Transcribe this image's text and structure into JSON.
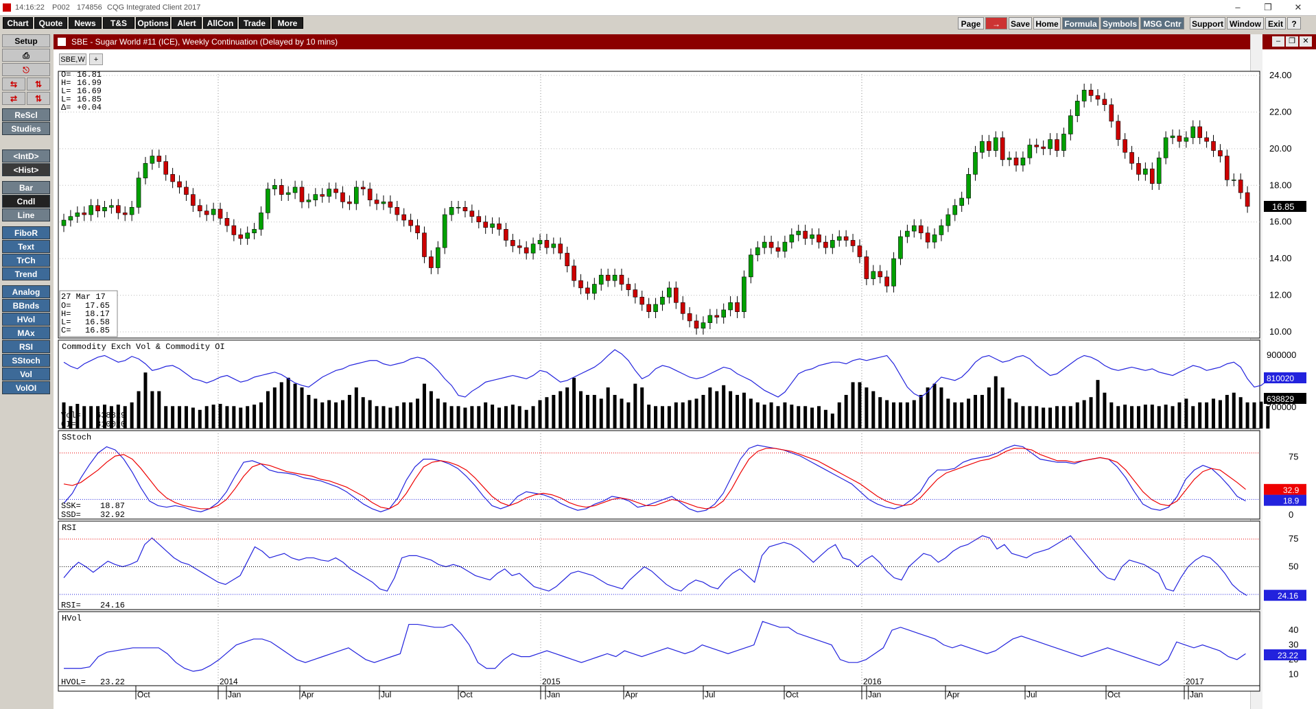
{
  "window": {
    "time": "14:16:22",
    "page": "P002",
    "id": "174856",
    "title": "CQG Integrated Client 2017"
  },
  "menu": [
    "Chart",
    "Quote",
    "News",
    "T&S",
    "Options",
    "Alert",
    "AllCon",
    "Trade",
    "More"
  ],
  "toolbar_right": [
    "Page",
    "→",
    "Save",
    "Home",
    "Formula",
    "Symbols",
    "MSG Cntr",
    "Support",
    "Window",
    "Exit",
    "?"
  ],
  "sidebar": {
    "top": [
      "Setup",
      "ReScl",
      "Studies",
      "<IntD>",
      "<Hist>",
      "Bar",
      "Cndl",
      "Line"
    ],
    "studies": [
      "FiboR",
      "Text",
      "TrCh",
      "Trend",
      "Analog",
      "BBnds",
      "HVol",
      "MAx",
      "RSI",
      "SStoch",
      "Vol",
      "VolOI"
    ]
  },
  "chart_window": {
    "title": "SBE - Sugar World #11 (ICE), Weekly Continuation (Delayed by 10 mins)",
    "tab": "SBE,W"
  },
  "ohlc_top": {
    "O": "16.81",
    "H": "16.99",
    "L": "16.69",
    "L2": "16.85",
    "delta": "+0.04"
  },
  "cursor_box": {
    "date": "27 Mar 17",
    "O": "17.65",
    "H": "18.17",
    "L": "16.58",
    "C": "16.85"
  },
  "colors": {
    "up": "#00a000",
    "down": "#cc0000",
    "blue": "#2222dd",
    "red": "#ee0000",
    "title_bar": "#8b0000"
  },
  "chart_data": [
    {
      "type": "candlestick",
      "title": "SBE - Sugar World #11 (ICE), Weekly Continuation",
      "ylim": [
        10,
        24
      ],
      "yticks": [
        "24.00",
        "22.00",
        "20.00",
        "18.00",
        "16.00",
        "14.00",
        "12.00",
        "10.00"
      ],
      "last": "16.85",
      "close": [
        16.1,
        16.3,
        16.5,
        16.4,
        16.9,
        16.6,
        16.8,
        16.9,
        16.5,
        16.4,
        16.8,
        18.4,
        19.2,
        19.6,
        19.3,
        18.6,
        18.2,
        17.9,
        17.5,
        16.9,
        16.6,
        16.4,
        16.7,
        16.2,
        15.8,
        15.3,
        15.1,
        15.4,
        15.6,
        16.5,
        17.8,
        18.0,
        17.5,
        17.6,
        17.9,
        17.1,
        17.2,
        17.5,
        17.4,
        17.8,
        17.6,
        17.1,
        17.0,
        17.9,
        17.8,
        17.2,
        17.0,
        17.1,
        16.8,
        16.4,
        16.1,
        15.8,
        15.4,
        14.1,
        13.5,
        14.6,
        16.4,
        16.8,
        16.8,
        16.6,
        16.3,
        16.0,
        15.7,
        15.9,
        15.6,
        15.0,
        14.7,
        14.6,
        14.3,
        14.8,
        15.0,
        14.6,
        14.8,
        14.3,
        13.6,
        12.8,
        12.4,
        12.1,
        12.6,
        13.1,
        12.8,
        13.1,
        12.6,
        12.3,
        11.9,
        11.5,
        11.1,
        11.5,
        11.9,
        12.4,
        11.6,
        11.0,
        10.6,
        10.2,
        10.5,
        10.9,
        10.8,
        11.2,
        11.6,
        11.1,
        13.0,
        14.2,
        14.6,
        14.9,
        14.6,
        14.4,
        14.9,
        15.3,
        15.5,
        15.1,
        15.3,
        14.9,
        14.6,
        15.0,
        15.2,
        15.0,
        14.7,
        14.1,
        12.9,
        13.3,
        13.0,
        12.5,
        14.0,
        15.2,
        15.5,
        15.8,
        15.4,
        14.9,
        15.3,
        15.8,
        16.4,
        16.9,
        17.3,
        18.6,
        19.8,
        20.4,
        19.9,
        20.6,
        19.4,
        19.5,
        19.1,
        19.5,
        20.2,
        20.1,
        20.0,
        20.5,
        19.9,
        20.8,
        21.8,
        22.6,
        23.2,
        22.9,
        22.7,
        22.4,
        21.5,
        20.5,
        19.8,
        19.2,
        18.6,
        18.9,
        18.1,
        19.5,
        20.6,
        20.7,
        20.4,
        20.6,
        21.2,
        20.6,
        20.4,
        19.9,
        19.6,
        18.3,
        18.3,
        17.6,
        16.85
      ],
      "x_labels": [
        "Oct",
        "2014",
        "Jan",
        "Apr",
        "Jul",
        "Oct",
        "2015",
        "Jan",
        "Apr",
        "Jul",
        "Oct",
        "2016",
        "Jan",
        "Apr",
        "Jul",
        "Oct",
        "2017",
        "Jan"
      ]
    },
    {
      "type": "bar",
      "title": "Commodity Exch Vol & Commodity OI",
      "series": [
        {
          "name": "Vol",
          "last": "638829"
        },
        {
          "name": "OI",
          "last": "810020"
        }
      ],
      "yticks": [
        "900000",
        "700000"
      ],
      "vol": [
        0.35,
        0.3,
        0.33,
        0.3,
        0.3,
        0.3,
        0.32,
        0.3,
        0.32,
        0.3,
        0.35,
        0.5,
        0.75,
        0.5,
        0.5,
        0.3,
        0.3,
        0.3,
        0.3,
        0.28,
        0.25,
        0.3,
        0.32,
        0.33,
        0.3,
        0.3,
        0.28,
        0.3,
        0.32,
        0.35,
        0.5,
        0.55,
        0.62,
        0.68,
        0.6,
        0.55,
        0.45,
        0.4,
        0.35,
        0.38,
        0.35,
        0.38,
        0.45,
        0.55,
        0.42,
        0.38,
        0.3,
        0.3,
        0.28,
        0.3,
        0.35,
        0.35,
        0.4,
        0.6,
        0.5,
        0.4,
        0.35,
        0.3,
        0.3,
        0.28,
        0.3,
        0.3,
        0.35,
        0.32,
        0.28,
        0.3,
        0.32,
        0.3,
        0.25,
        0.3,
        0.38,
        0.42,
        0.45,
        0.5,
        0.55,
        0.68,
        0.5,
        0.45,
        0.45,
        0.4,
        0.55,
        0.45,
        0.4,
        0.35,
        0.6,
        0.55,
        0.32,
        0.3,
        0.3,
        0.3,
        0.35,
        0.35,
        0.38,
        0.4,
        0.45,
        0.55,
        0.5,
        0.58,
        0.5,
        0.45,
        0.48,
        0.4,
        0.35,
        0.32,
        0.35,
        0.3,
        0.35,
        0.32,
        0.3,
        0.3,
        0.28,
        0.3,
        0.25,
        0.2,
        0.35,
        0.45,
        0.62,
        0.62,
        0.55,
        0.5,
        0.42,
        0.38,
        0.35,
        0.35,
        0.35,
        0.38,
        0.45,
        0.55,
        0.6,
        0.55,
        0.4,
        0.35,
        0.35,
        0.4,
        0.45,
        0.45,
        0.55,
        0.7,
        0.55,
        0.4,
        0.35,
        0.3,
        0.3,
        0.3,
        0.28,
        0.28,
        0.3,
        0.3,
        0.3,
        0.35,
        0.38,
        0.42,
        0.65,
        0.48,
        0.35,
        0.3,
        0.32,
        0.3,
        0.3,
        0.32,
        0.32,
        0.3,
        0.32,
        0.3,
        0.35,
        0.4,
        0.3,
        0.35,
        0.35,
        0.4,
        0.38,
        0.45,
        0.48,
        0.42,
        0.35,
        0.35,
        0.36,
        0.3
      ],
      "oi": [
        0.8,
        0.75,
        0.72,
        0.78,
        0.82,
        0.86,
        0.88,
        0.84,
        0.8,
        0.82,
        0.87,
        0.84,
        0.78,
        0.7,
        0.72,
        0.75,
        0.76,
        0.72,
        0.66,
        0.6,
        0.58,
        0.55,
        0.58,
        0.62,
        0.64,
        0.6,
        0.56,
        0.58,
        0.62,
        0.64,
        0.66,
        0.68,
        0.65,
        0.6,
        0.55,
        0.52,
        0.5,
        0.56,
        0.62,
        0.66,
        0.7,
        0.72,
        0.76,
        0.78,
        0.8,
        0.82,
        0.82,
        0.78,
        0.76,
        0.78,
        0.8,
        0.84,
        0.86,
        0.84,
        0.78,
        0.7,
        0.6,
        0.52,
        0.4,
        0.38,
        0.45,
        0.5,
        0.56,
        0.58,
        0.6,
        0.62,
        0.64,
        0.62,
        0.6,
        0.64,
        0.7,
        0.68,
        0.62,
        0.56,
        0.58,
        0.62,
        0.66,
        0.7,
        0.74,
        0.8,
        0.88,
        0.95,
        0.9,
        0.82,
        0.7,
        0.6,
        0.64,
        0.72,
        0.76,
        0.74,
        0.7,
        0.66,
        0.62,
        0.6,
        0.62,
        0.66,
        0.7,
        0.74,
        0.72,
        0.66,
        0.62,
        0.58,
        0.52,
        0.46,
        0.42,
        0.38,
        0.44,
        0.55,
        0.66,
        0.7,
        0.72,
        0.76,
        0.78,
        0.8,
        0.8,
        0.78,
        0.82,
        0.84,
        0.82,
        0.84,
        0.86,
        0.88,
        0.78,
        0.64,
        0.5,
        0.42,
        0.38,
        0.44,
        0.54,
        0.62,
        0.6,
        0.58,
        0.62,
        0.7,
        0.8,
        0.86,
        0.88,
        0.84,
        0.8,
        0.82,
        0.86,
        0.88,
        0.84,
        0.76,
        0.7,
        0.64,
        0.66,
        0.72,
        0.78,
        0.84,
        0.88,
        0.86,
        0.82,
        0.76,
        0.72,
        0.7,
        0.72,
        0.74,
        0.72,
        0.7,
        0.72,
        0.68,
        0.66,
        0.64,
        0.68,
        0.72,
        0.76,
        0.74,
        0.7,
        0.72,
        0.74,
        0.78,
        0.8,
        0.74,
        0.6,
        0.5,
        0.52,
        0.58,
        0.62
      ]
    },
    {
      "type": "line",
      "title": "SStoch",
      "yticks": [
        "75",
        "25",
        "0"
      ],
      "series": [
        {
          "name": "SSK",
          "last": "18.87"
        },
        {
          "name": "SSD",
          "last": "32.92"
        }
      ],
      "labels_right": [
        "32.9",
        "18.9"
      ],
      "ssk": [
        15,
        28,
        48,
        65,
        80,
        88,
        84,
        72,
        55,
        35,
        18,
        12,
        10,
        12,
        10,
        6,
        4,
        8,
        16,
        30,
        50,
        68,
        70,
        66,
        58,
        55,
        54,
        52,
        48,
        46,
        44,
        40,
        36,
        30,
        22,
        14,
        8,
        4,
        8,
        22,
        45,
        62,
        72,
        72,
        70,
        66,
        60,
        50,
        38,
        24,
        12,
        8,
        12,
        24,
        30,
        28,
        26,
        22,
        15,
        10,
        6,
        8,
        14,
        18,
        24,
        22,
        18,
        10,
        12,
        16,
        20,
        24,
        16,
        8,
        4,
        6,
        14,
        28,
        50,
        72,
        86,
        90,
        88,
        86,
        84,
        80,
        76,
        70,
        64,
        58,
        52,
        46,
        40,
        30,
        20,
        14,
        10,
        8,
        12,
        20,
        30,
        48,
        58,
        58,
        60,
        68,
        72,
        74,
        76,
        80,
        86,
        90,
        88,
        80,
        72,
        70,
        68,
        68,
        66,
        70,
        72,
        74,
        72,
        62,
        48,
        30,
        14,
        8,
        6,
        10,
        24,
        46,
        58,
        64,
        60,
        50,
        38,
        24,
        18
      ],
      "ssd": [
        40,
        38,
        42,
        50,
        58,
        68,
        76,
        78,
        72,
        60,
        46,
        32,
        22,
        16,
        12,
        10,
        8,
        8,
        12,
        20,
        34,
        50,
        62,
        66,
        64,
        60,
        56,
        54,
        52,
        50,
        46,
        44,
        40,
        36,
        30,
        24,
        16,
        10,
        8,
        14,
        28,
        46,
        62,
        68,
        70,
        68,
        64,
        58,
        48,
        36,
        24,
        16,
        12,
        16,
        22,
        26,
        28,
        26,
        22,
        16,
        12,
        10,
        12,
        16,
        20,
        22,
        20,
        16,
        12,
        12,
        16,
        20,
        18,
        14,
        10,
        8,
        10,
        18,
        34,
        54,
        72,
        82,
        86,
        86,
        84,
        82,
        78,
        74,
        70,
        64,
        58,
        52,
        46,
        40,
        32,
        24,
        18,
        14,
        12,
        14,
        22,
        34,
        46,
        54,
        58,
        62,
        66,
        70,
        72,
        76,
        82,
        86,
        86,
        84,
        78,
        74,
        70,
        70,
        68,
        70,
        72,
        74,
        72,
        68,
        58,
        44,
        30,
        20,
        14,
        12,
        18,
        32,
        46,
        56,
        60,
        58,
        50,
        42,
        33
      ]
    },
    {
      "type": "line",
      "title": "RSI",
      "yticks": [
        "75",
        "50",
        "25"
      ],
      "series": [
        {
          "name": "RSI",
          "last": "24.16"
        }
      ],
      "values": [
        40,
        48,
        54,
        50,
        45,
        50,
        55,
        52,
        50,
        52,
        55,
        70,
        76,
        70,
        64,
        58,
        54,
        52,
        48,
        44,
        40,
        36,
        34,
        38,
        42,
        55,
        68,
        64,
        58,
        60,
        62,
        58,
        56,
        58,
        58,
        56,
        55,
        58,
        54,
        48,
        44,
        40,
        36,
        30,
        28,
        40,
        58,
        60,
        60,
        58,
        56,
        52,
        50,
        52,
        50,
        46,
        42,
        40,
        38,
        44,
        48,
        42,
        44,
        38,
        32,
        30,
        28,
        32,
        38,
        44,
        46,
        44,
        42,
        38,
        34,
        32,
        30,
        38,
        44,
        50,
        46,
        40,
        34,
        30,
        28,
        34,
        38,
        36,
        32,
        30,
        38,
        44,
        48,
        42,
        36,
        60,
        68,
        70,
        72,
        70,
        66,
        60,
        54,
        60,
        66,
        70,
        58,
        56,
        50,
        56,
        60,
        54,
        46,
        40,
        38,
        50,
        56,
        62,
        60,
        54,
        58,
        64,
        68,
        70,
        74,
        78,
        76,
        66,
        70,
        62,
        60,
        58,
        62,
        64,
        66,
        70,
        74,
        78,
        70,
        62,
        54,
        46,
        40,
        38,
        50,
        56,
        54,
        52,
        48,
        44,
        30,
        28,
        40,
        50,
        56,
        60,
        58,
        52,
        44,
        34,
        28,
        24
      ],
      "ylim": [
        0,
        100
      ]
    },
    {
      "type": "line",
      "title": "HVol",
      "yticks": [
        "40",
        "30",
        "20",
        "10"
      ],
      "series": [
        {
          "name": "HVOL",
          "last": "23.22"
        }
      ],
      "values": [
        14,
        14,
        14,
        15,
        22,
        25,
        26,
        27,
        28,
        28,
        28,
        28,
        24,
        18,
        14,
        12,
        13,
        16,
        20,
        25,
        30,
        32,
        34,
        34,
        32,
        28,
        24,
        20,
        18,
        20,
        22,
        24,
        26,
        28,
        24,
        20,
        18,
        20,
        22,
        24,
        44,
        44,
        43,
        42,
        42,
        44,
        38,
        30,
        18,
        14,
        14,
        20,
        24,
        22,
        22,
        24,
        26,
        24,
        22,
        20,
        18,
        20,
        22,
        24,
        22,
        26,
        24,
        22,
        24,
        26,
        28,
        26,
        24,
        26,
        30,
        28,
        26,
        24,
        26,
        28,
        30,
        46,
        44,
        42,
        42,
        38,
        36,
        34,
        32,
        30,
        20,
        18,
        18,
        20,
        24,
        28,
        40,
        42,
        40,
        38,
        36,
        34,
        30,
        28,
        30,
        28,
        26,
        24,
        26,
        30,
        34,
        36,
        34,
        32,
        30,
        28,
        26,
        24,
        22,
        24,
        26,
        28,
        26,
        24,
        22,
        20,
        18,
        16,
        20,
        32,
        30,
        28,
        30,
        28,
        26,
        22,
        20,
        24
      ]
    }
  ]
}
